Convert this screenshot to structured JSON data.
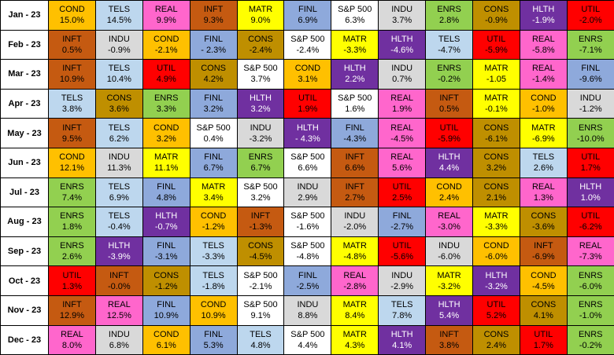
{
  "colors": {
    "COND": "#ffc000",
    "TELS": "#bdd7ee",
    "REAL": "#ff66cc",
    "INFT": "#c55a11",
    "MATR": "#ffff00",
    "FINL": "#8ea9db",
    "S&P 500": "#ffffff",
    "INDU": "#d9d9d9",
    "ENRS": "#92d050",
    "CONS": "#bf8f00",
    "HLTH": "#7030a0",
    "UTIL": "#ff0000"
  },
  "text_colors": {
    "HLTH": "#ffffff"
  },
  "rows": [
    {
      "month": "Jan - 23",
      "cells": [
        [
          "COND",
          "15.0%"
        ],
        [
          "TELS",
          "14.5%"
        ],
        [
          "REAL",
          "9.9%"
        ],
        [
          "INFT",
          "9.3%"
        ],
        [
          "MATR",
          "9.0%"
        ],
        [
          "FINL",
          "6.9%"
        ],
        [
          "S&P 500",
          "6.3%"
        ],
        [
          "INDU",
          "3.7%"
        ],
        [
          "ENRS",
          "2.8%"
        ],
        [
          "CONS",
          "-0.9%"
        ],
        [
          "HLTH",
          "-1.9%"
        ],
        [
          "UTIL",
          "-2.0%"
        ]
      ]
    },
    {
      "month": "Feb - 23",
      "cells": [
        [
          "INFT",
          "0.5%"
        ],
        [
          "INDU",
          "-0.9%"
        ],
        [
          "COND",
          "-2.1%"
        ],
        [
          "FINL",
          "- 2.3%"
        ],
        [
          "CONS",
          "-2.4%"
        ],
        [
          "S&P 500",
          "-2.4%"
        ],
        [
          "MATR",
          "-3.3%"
        ],
        [
          "HLTH",
          "-4.6%"
        ],
        [
          "TELS",
          "-4.7%"
        ],
        [
          "UTIL",
          "-5.9%"
        ],
        [
          "REAL",
          "-5.8%"
        ],
        [
          "ENRS",
          "-7.1%"
        ]
      ]
    },
    {
      "month": "Mar - 23",
      "cells": [
        [
          "INFT",
          "10.9%"
        ],
        [
          "TELS",
          "10.4%"
        ],
        [
          "UTIL",
          "4.9%"
        ],
        [
          "CONS",
          "4.2%"
        ],
        [
          "S&P 500",
          "3.7%"
        ],
        [
          "COND",
          "3.1%"
        ],
        [
          "HLTH",
          "2.2%"
        ],
        [
          "INDU",
          "0.7%"
        ],
        [
          "ENRS",
          "-0.2%"
        ],
        [
          "MATR",
          "-1.05"
        ],
        [
          "REAL",
          "-1.4%"
        ],
        [
          "FINL",
          "-9.6%"
        ]
      ]
    },
    {
      "month": "Apr - 23",
      "cells": [
        [
          "TELS",
          "3.8%"
        ],
        [
          "CONS",
          "3.6%"
        ],
        [
          "ENRS",
          "3.3%"
        ],
        [
          "FINL",
          "3.2%"
        ],
        [
          "HLTH",
          "3.2%"
        ],
        [
          "UTIL",
          "1.9%"
        ],
        [
          "S&P 500",
          "1.6%"
        ],
        [
          "REAL",
          "1.9%"
        ],
        [
          "INFT",
          "0.5%"
        ],
        [
          "MATR",
          "-0.1%"
        ],
        [
          "COND",
          "-1.0%"
        ],
        [
          "INDU",
          "-1.2%"
        ]
      ]
    },
    {
      "month": "May - 23",
      "cells": [
        [
          "INFT",
          "9.5%"
        ],
        [
          "TELS",
          "6.2%"
        ],
        [
          "COND",
          "3.2%"
        ],
        [
          "S&P 500",
          "0.4%"
        ],
        [
          "INDU",
          "-3.2%"
        ],
        [
          "HLTH",
          "- 4.3%"
        ],
        [
          "FINL",
          "-4.3%"
        ],
        [
          "REAL",
          "-4.5%"
        ],
        [
          "UTIL",
          "-5.9%"
        ],
        [
          "CONS",
          "-6.1%"
        ],
        [
          "MATR",
          "-6.9%"
        ],
        [
          "ENRS",
          "-10.0%"
        ]
      ]
    },
    {
      "month": "Jun - 23",
      "cells": [
        [
          "COND",
          "12.1%"
        ],
        [
          "INDU",
          "11.3%"
        ],
        [
          "MATR",
          "11.1%"
        ],
        [
          "FINL",
          "6.7%"
        ],
        [
          "ENRS",
          "6.7%"
        ],
        [
          "S&P 500",
          "6.6%"
        ],
        [
          "INFT",
          "6.6%"
        ],
        [
          "REAL",
          "5.6%"
        ],
        [
          "HLTH",
          "4.4%"
        ],
        [
          "CONS",
          "3.2%"
        ],
        [
          "TELS",
          "2.6%"
        ],
        [
          "UTIL",
          "1.7%"
        ]
      ]
    },
    {
      "month": "Jul - 23",
      "cells": [
        [
          "ENRS",
          "7.4%"
        ],
        [
          "TELS",
          "6.9%"
        ],
        [
          "FINL",
          "4.8%"
        ],
        [
          "MATR",
          "3.4%"
        ],
        [
          "S&P 500",
          "3.2%"
        ],
        [
          "INDU",
          "2.9%"
        ],
        [
          "INFT",
          "2.7%"
        ],
        [
          "UTIL",
          "2.5%"
        ],
        [
          "COND",
          "2.4%"
        ],
        [
          "CONS",
          "2.1%"
        ],
        [
          "REAL",
          "1.3%"
        ],
        [
          "HLTH",
          "1.0%"
        ]
      ]
    },
    {
      "month": "Aug - 23",
      "cells": [
        [
          "ENRS",
          "1.8%"
        ],
        [
          "TELS",
          "-0.4%"
        ],
        [
          "HLTH",
          "-0.7%"
        ],
        [
          "COND",
          "-1.2%"
        ],
        [
          "INFT",
          "-1.3%"
        ],
        [
          "S&P 500",
          "-1.6%"
        ],
        [
          "INDU",
          "-2.0%"
        ],
        [
          "FINL",
          "-2.7%"
        ],
        [
          "REAL",
          "-3.0%"
        ],
        [
          "MATR",
          "-3.3%"
        ],
        [
          "CONS",
          "-3.6%"
        ],
        [
          "UTIL",
          "-6.2%"
        ]
      ]
    },
    {
      "month": "Sep - 23",
      "cells": [
        [
          "ENRS",
          "2.6%"
        ],
        [
          "HLTH",
          "-3.9%"
        ],
        [
          "FINL",
          "-3.1%"
        ],
        [
          "TELS",
          "-3.3%"
        ],
        [
          "CONS",
          "-4.5%"
        ],
        [
          "S&P 500",
          "-4.8%"
        ],
        [
          "MATR",
          "-4.8%"
        ],
        [
          "UTIL",
          "-5.6%"
        ],
        [
          "INDU",
          "-6.0%"
        ],
        [
          "COND",
          "-6.0%"
        ],
        [
          "INFT",
          "-6.9%"
        ],
        [
          "REAL",
          "-7.3%"
        ]
      ]
    },
    {
      "month": "Oct - 23",
      "cells": [
        [
          "UTIL",
          "1.3%"
        ],
        [
          "INFT",
          "-0.0%"
        ],
        [
          "CONS",
          "-1.2%"
        ],
        [
          "TELS",
          "-1.8%"
        ],
        [
          "S&P 500",
          "-2.1%"
        ],
        [
          "FINL",
          "-2.5%"
        ],
        [
          "REAL",
          "-2.8%"
        ],
        [
          "INDU",
          "-2.9%"
        ],
        [
          "MATR",
          "-3.2%"
        ],
        [
          "HLTH",
          "-3.2%"
        ],
        [
          "COND",
          "-4.5%"
        ],
        [
          "ENRS",
          "-6.0%"
        ]
      ]
    },
    {
      "month": "Nov - 23",
      "cells": [
        [
          "INFT",
          "12.9%"
        ],
        [
          "REAL",
          "12.5%"
        ],
        [
          "FINL",
          "10.9%"
        ],
        [
          "COND",
          "10.9%"
        ],
        [
          "S&P 500",
          "9.1%"
        ],
        [
          "INDU",
          "8.8%"
        ],
        [
          "MATR",
          "8.4%"
        ],
        [
          "TELS",
          "7.8%"
        ],
        [
          "HLTH",
          "5.4%"
        ],
        [
          "UTIL",
          "5.2%"
        ],
        [
          "CONS",
          "4.1%"
        ],
        [
          "ENRS",
          "-1.0%"
        ]
      ]
    },
    {
      "month": "Dec - 23",
      "cells": [
        [
          "REAL",
          "8.0%"
        ],
        [
          "INDU",
          "6.8%"
        ],
        [
          "COND",
          "6.1%"
        ],
        [
          "FINL",
          "5.3%"
        ],
        [
          "TELS",
          "4.8%"
        ],
        [
          "S&P 500",
          "4.4%"
        ],
        [
          "MATR",
          "4.3%"
        ],
        [
          "HLTH",
          "4.1%"
        ],
        [
          "INFT",
          "3.8%"
        ],
        [
          "CONS",
          "2.4%"
        ],
        [
          "UTIL",
          "1.7%"
        ],
        [
          "ENRS",
          "-0.2%"
        ]
      ]
    }
  ]
}
